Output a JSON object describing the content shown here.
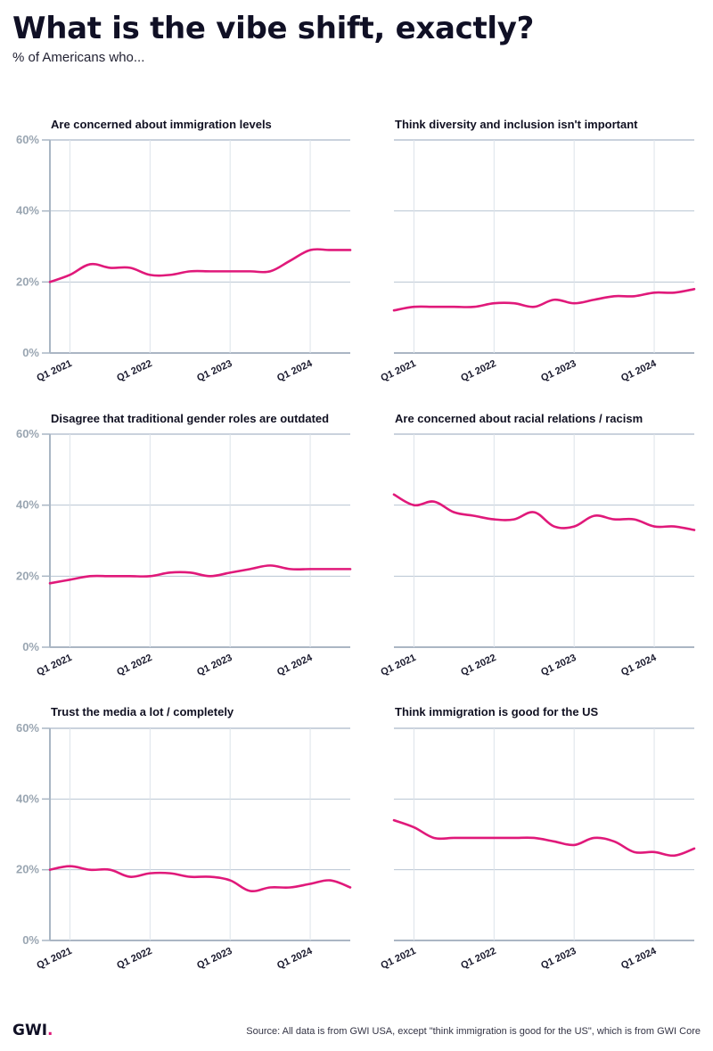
{
  "header": {
    "title": "What is the vibe shift, exactly?",
    "subtitle": "% of Americans who..."
  },
  "footer": {
    "logo_text": "GWI",
    "logo_dot": ".",
    "source": "Source: All data is from GWI USA, except \"think immigration is good for the US\", which is from GWI Core"
  },
  "colors": {
    "line": "#e0197a",
    "grid": "#b8c4d2",
    "axis": "#a9b6c4",
    "y_tick_text": "#9aa6b2",
    "x_tick_text": "#1a1a2e"
  },
  "chart_data": [
    {
      "type": "line",
      "title": "Are concerned about immigration levels",
      "x": [
        2020.75,
        2021.0,
        2021.25,
        2021.5,
        2021.75,
        2022.0,
        2022.25,
        2022.5,
        2022.75,
        2023.0,
        2023.25,
        2023.5,
        2023.75,
        2024.0,
        2024.25,
        2024.5
      ],
      "values": [
        20,
        22,
        25,
        24,
        24,
        22,
        22,
        23,
        23,
        23,
        23,
        23,
        26,
        29,
        29,
        29
      ],
      "x_ticks": [
        "Q1 2021",
        "Q1 2022",
        "Q1 2023",
        "Q1 2024"
      ],
      "x_tick_values": [
        2021,
        2022,
        2023,
        2024
      ],
      "y_ticks": [
        "0%",
        "20%",
        "40%",
        "60%"
      ],
      "y_tick_values": [
        0,
        20,
        40,
        60
      ],
      "ylim": [
        0,
        60
      ]
    },
    {
      "type": "line",
      "title": "Think diversity and inclusion isn't important",
      "x": [
        2020.75,
        2021.0,
        2021.25,
        2021.5,
        2021.75,
        2022.0,
        2022.25,
        2022.5,
        2022.75,
        2023.0,
        2023.25,
        2023.5,
        2023.75,
        2024.0,
        2024.25,
        2024.5
      ],
      "values": [
        12,
        13,
        13,
        13,
        13,
        14,
        14,
        13,
        15,
        14,
        15,
        16,
        16,
        17,
        17,
        18
      ],
      "x_ticks": [
        "Q1 2021",
        "Q1 2022",
        "Q1 2023",
        "Q1 2024"
      ],
      "x_tick_values": [
        2021,
        2022,
        2023,
        2024
      ],
      "y_ticks": [],
      "y_tick_values": [
        0,
        20,
        40,
        60
      ],
      "ylim": [
        0,
        60
      ]
    },
    {
      "type": "line",
      "title": "Disagree that traditional gender roles are outdated",
      "x": [
        2020.75,
        2021.0,
        2021.25,
        2021.5,
        2021.75,
        2022.0,
        2022.25,
        2022.5,
        2022.75,
        2023.0,
        2023.25,
        2023.5,
        2023.75,
        2024.0,
        2024.25,
        2024.5
      ],
      "values": [
        18,
        19,
        20,
        20,
        20,
        20,
        21,
        21,
        20,
        21,
        22,
        23,
        22,
        22,
        22,
        22
      ],
      "x_ticks": [
        "Q1 2021",
        "Q1 2022",
        "Q1 2023",
        "Q1 2024"
      ],
      "x_tick_values": [
        2021,
        2022,
        2023,
        2024
      ],
      "y_ticks": [
        "0%",
        "20%",
        "40%",
        "60%"
      ],
      "y_tick_values": [
        0,
        20,
        40,
        60
      ],
      "ylim": [
        0,
        60
      ]
    },
    {
      "type": "line",
      "title": "Are concerned about racial relations / racism",
      "x": [
        2020.75,
        2021.0,
        2021.25,
        2021.5,
        2021.75,
        2022.0,
        2022.25,
        2022.5,
        2022.75,
        2023.0,
        2023.25,
        2023.5,
        2023.75,
        2024.0,
        2024.25,
        2024.5
      ],
      "values": [
        43,
        40,
        41,
        38,
        37,
        36,
        36,
        38,
        34,
        34,
        37,
        36,
        36,
        34,
        34,
        33
      ],
      "x_ticks": [
        "Q1 2021",
        "Q1 2022",
        "Q1 2023",
        "Q1 2024"
      ],
      "x_tick_values": [
        2021,
        2022,
        2023,
        2024
      ],
      "y_ticks": [],
      "y_tick_values": [
        0,
        20,
        40,
        60
      ],
      "ylim": [
        0,
        60
      ]
    },
    {
      "type": "line",
      "title": "Trust the media a lot / completely",
      "x": [
        2020.75,
        2021.0,
        2021.25,
        2021.5,
        2021.75,
        2022.0,
        2022.25,
        2022.5,
        2022.75,
        2023.0,
        2023.25,
        2023.5,
        2023.75,
        2024.0,
        2024.25,
        2024.5
      ],
      "values": [
        20,
        21,
        20,
        20,
        18,
        19,
        19,
        18,
        18,
        17,
        14,
        15,
        15,
        16,
        17,
        15
      ],
      "x_ticks": [
        "Q1 2021",
        "Q1 2022",
        "Q1 2023",
        "Q1 2024"
      ],
      "x_tick_values": [
        2021,
        2022,
        2023,
        2024
      ],
      "y_ticks": [
        "0%",
        "20%",
        "40%",
        "60%"
      ],
      "y_tick_values": [
        0,
        20,
        40,
        60
      ],
      "ylim": [
        0,
        60
      ]
    },
    {
      "type": "line",
      "title": "Think immigration is good for the US",
      "x": [
        2020.75,
        2021.0,
        2021.25,
        2021.5,
        2021.75,
        2022.0,
        2022.25,
        2022.5,
        2022.75,
        2023.0,
        2023.25,
        2023.5,
        2023.75,
        2024.0,
        2024.25,
        2024.5
      ],
      "values": [
        34,
        32,
        29,
        29,
        29,
        29,
        29,
        29,
        28,
        27,
        29,
        28,
        25,
        25,
        24,
        26
      ],
      "x_ticks": [
        "Q1 2021",
        "Q1 2022",
        "Q1 2023",
        "Q1 2024"
      ],
      "x_tick_values": [
        2021,
        2022,
        2023,
        2024
      ],
      "y_ticks": [],
      "y_tick_values": [
        0,
        20,
        40,
        60
      ],
      "ylim": [
        0,
        60
      ]
    }
  ]
}
